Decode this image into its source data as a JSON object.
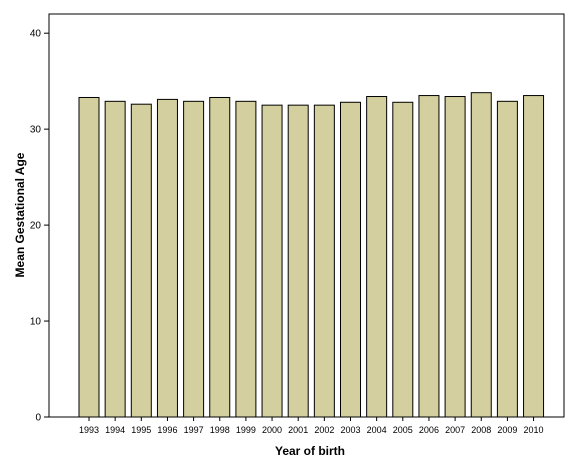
{
  "chart_data": {
    "type": "bar",
    "categories": [
      "1993",
      "1994",
      "1995",
      "1996",
      "1997",
      "1998",
      "1999",
      "2000",
      "2001",
      "2002",
      "2003",
      "2004",
      "2005",
      "2006",
      "2007",
      "2008",
      "2009",
      "2010"
    ],
    "values": [
      33.3,
      32.9,
      32.6,
      33.1,
      32.9,
      33.3,
      32.9,
      32.5,
      32.5,
      32.5,
      32.8,
      33.4,
      32.8,
      33.5,
      33.4,
      33.8,
      32.9,
      33.5
    ],
    "xlabel": "Year of birth",
    "ylabel": "Mean Gestational Age",
    "ylim": [
      0,
      42
    ],
    "yticks": [
      "0",
      "10",
      "20",
      "30",
      "40"
    ],
    "grid": false,
    "colors": {
      "bar_fill": "#d4cf9e",
      "bar_stroke": "#000000",
      "frame": "#000000"
    }
  }
}
